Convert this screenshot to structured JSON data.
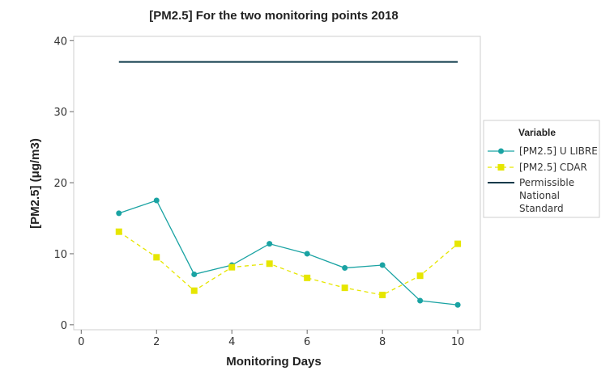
{
  "chart_data": {
    "type": "line",
    "title": "[PM2.5] For the two monitoring points 2018",
    "xlabel": "Monitoring Days",
    "ylabel": "[PM2.5] (μg/m3)",
    "xlim": [
      -0.2,
      10.6
    ],
    "ylim": [
      -0.7,
      40.6
    ],
    "xticks": [
      0,
      2,
      4,
      6,
      8,
      10
    ],
    "yticks": [
      0,
      10,
      20,
      30,
      40
    ],
    "grid": false,
    "legend": {
      "title": "Variable",
      "position": "right"
    },
    "series": [
      {
        "name": "[PM2.5] U LIBRE",
        "color": "#1aa3a3",
        "marker": "circle",
        "dash": "solid",
        "x": [
          1,
          2,
          3,
          4,
          5,
          6,
          7,
          8,
          9,
          10
        ],
        "y": [
          15.7,
          17.5,
          7.1,
          8.4,
          11.4,
          10.0,
          8.0,
          8.4,
          3.4,
          2.8
        ]
      },
      {
        "name": "[PM2.5] CDAR",
        "color": "#e6e600",
        "marker": "square",
        "dash": "dashed",
        "x": [
          1,
          2,
          3,
          4,
          5,
          6,
          7,
          8,
          9,
          10
        ],
        "y": [
          13.1,
          9.5,
          4.8,
          8.1,
          8.6,
          6.6,
          5.2,
          4.2,
          6.9,
          11.4
        ]
      },
      {
        "name_lines": [
          "Permissible",
          "National",
          "Standard"
        ],
        "color": "#0e3a4a",
        "marker": "none",
        "dash": "solid",
        "x": [
          1,
          10
        ],
        "y": [
          37,
          37
        ]
      }
    ]
  }
}
